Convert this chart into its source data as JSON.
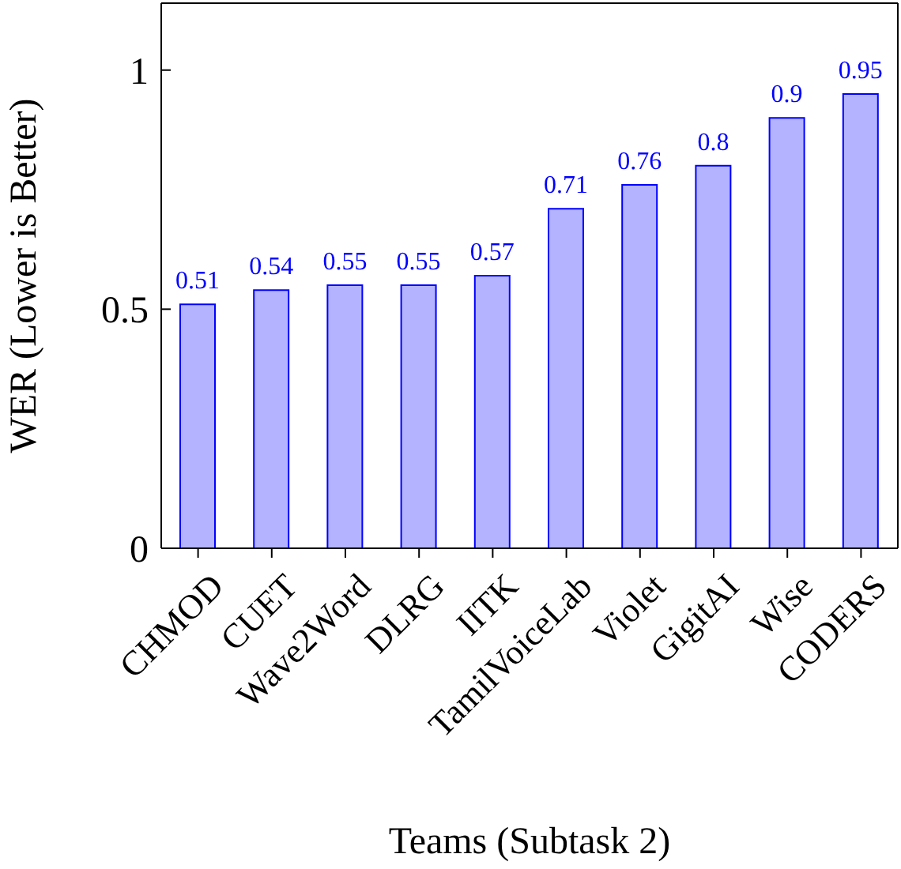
{
  "chart_data": {
    "type": "bar",
    "xlabel": "Teams (Subtask 2)",
    "ylabel": "WER (Lower is Better)",
    "categories": [
      "CHMOD",
      "CUET",
      "Wave2Word",
      "DLRG",
      "IITK",
      "TamilVoiceLab",
      "Violet",
      "GigitAI",
      "Wise",
      "CODERS"
    ],
    "values": [
      0.51,
      0.54,
      0.55,
      0.55,
      0.57,
      0.71,
      0.76,
      0.8,
      0.9,
      0.95
    ],
    "color": "#b3b3ff",
    "ylim": [
      0,
      1.14
    ],
    "yticks": [
      0,
      0.5,
      1
    ],
    "data_labels": true,
    "grid": false,
    "legend": false
  }
}
